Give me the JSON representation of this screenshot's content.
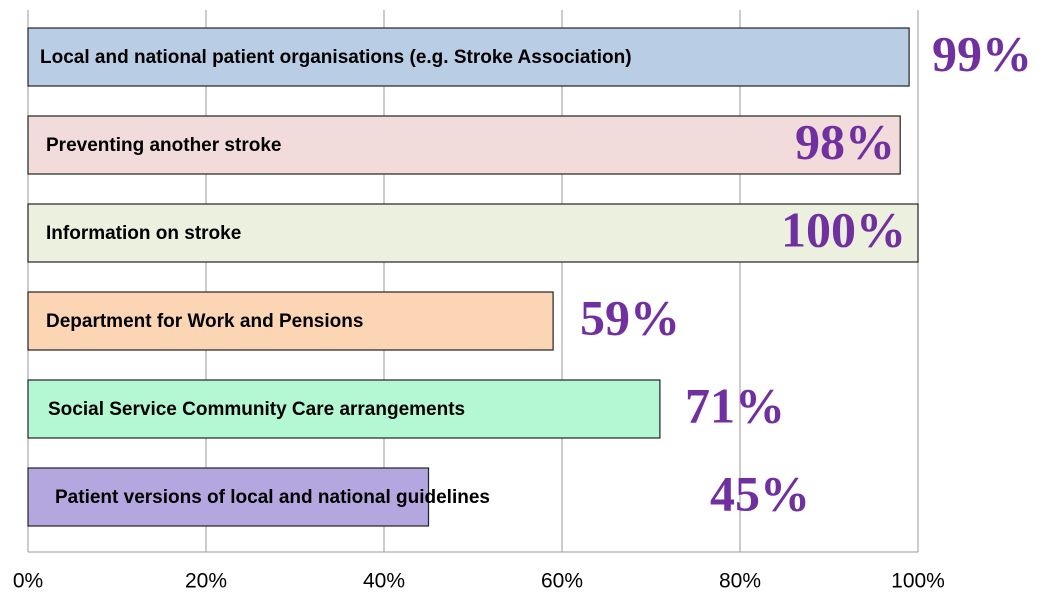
{
  "chart_data": {
    "type": "bar",
    "orientation": "horizontal",
    "categories": [
      "Local and national patient organisations (e.g. Stroke Association)",
      "Preventing another stroke",
      "Information on stroke",
      "Department for Work and Pensions",
      "Social Service Community Care arrangements",
      "Patient versions of local and national guidelines"
    ],
    "values": [
      99,
      98,
      100,
      59,
      71,
      45
    ],
    "value_labels": [
      "99%",
      "98%",
      "100%",
      "59%",
      "71%",
      "45%"
    ],
    "colors": [
      "#b9cde5",
      "#f2dcdb",
      "#ebf1de",
      "#fcd5b5",
      "#b3f7d3",
      "#b4a7e0"
    ],
    "xlim": [
      0,
      100
    ],
    "xticks": [
      {
        "value": 0,
        "label": "0%"
      },
      {
        "value": 20,
        "label": "20%"
      },
      {
        "value": 40,
        "label": "40%"
      },
      {
        "value": 60,
        "label": "60%"
      },
      {
        "value": 80,
        "label": "80%"
      },
      {
        "value": 100,
        "label": "100%"
      }
    ],
    "grid": true
  }
}
